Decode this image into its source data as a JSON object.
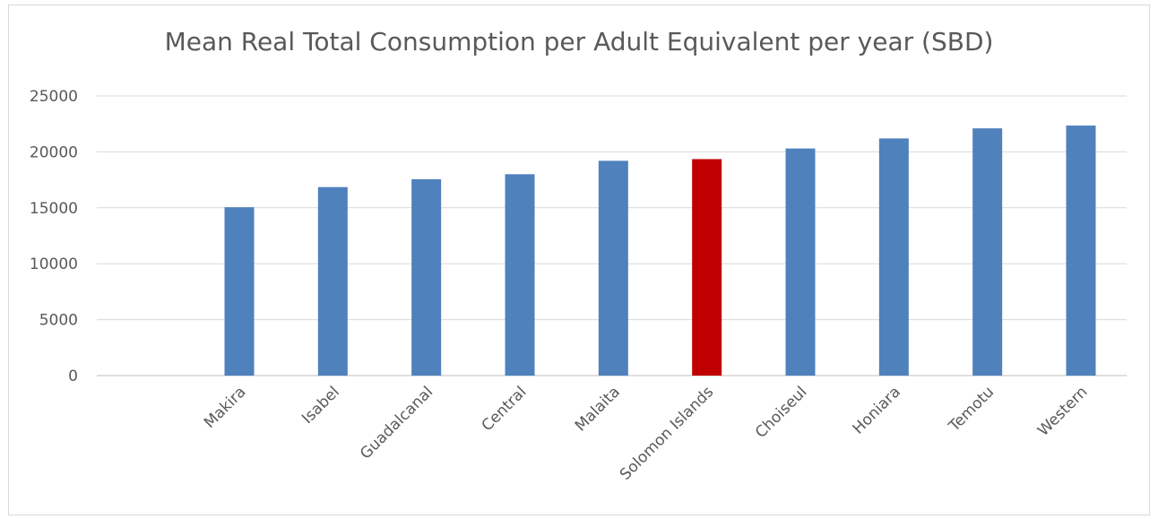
{
  "chart_data": {
    "type": "bar",
    "title": "Mean Real Total Consumption per Adult Equivalent per year (SBD)",
    "categories": [
      "Makira",
      "Isabel",
      "Guadalcanal",
      "Central",
      "Malaita",
      "Solomon Islands",
      "Choiseul",
      "Honiara",
      "Temotu",
      "Western"
    ],
    "values": [
      15050,
      16850,
      17550,
      18000,
      19200,
      19350,
      20300,
      21200,
      22100,
      22350
    ],
    "highlight_category": "Solomon Islands",
    "ylim": [
      0,
      25000
    ],
    "yticks": [
      0,
      5000,
      10000,
      15000,
      20000,
      25000
    ],
    "grid": true,
    "legend": "none",
    "colors": {
      "bar": "#4f81bd",
      "highlight": "#c00000",
      "grid": "#d9d9d9",
      "text": "#595959"
    }
  }
}
